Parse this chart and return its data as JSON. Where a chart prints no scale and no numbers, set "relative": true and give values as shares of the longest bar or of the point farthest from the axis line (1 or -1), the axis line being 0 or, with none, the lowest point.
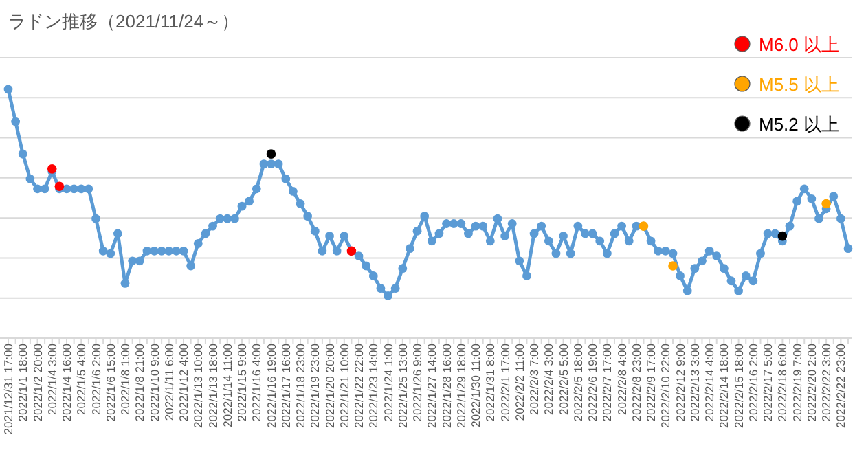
{
  "chart_data": {
    "type": "line",
    "title": "ラドン推移（2021/11/24～）",
    "relative": true,
    "grid": "y",
    "legend": "top right",
    "marker": "circle",
    "line_style": "solid",
    "categories": [
      "2021/12/31 17:00",
      null,
      "2022/1/1 18:00",
      null,
      "2022/1/2 20:00",
      null,
      "2022/1/4 3:00",
      null,
      "2022/1/4 16:00",
      null,
      "2022/1/5 4:00",
      null,
      "2022/1/6 2:00",
      null,
      "2022/1/6 15:00",
      null,
      "2022/1/8 1:00",
      null,
      "2022/1/8 21:00",
      null,
      "2022/1/10 9:00",
      null,
      "2022/1/11 6:00",
      null,
      "2022/1/12 4:00",
      null,
      "2022/1/13 10:00",
      null,
      "2022/1/13 18:00",
      null,
      "2022/1/14 11:00",
      null,
      "2022/1/15 9:00",
      null,
      "2022/1/16 4:00",
      null,
      "2022/1/16 19:00",
      null,
      "2022/1/17 16:00",
      null,
      "2022/1/18 23:00",
      null,
      "2022/1/19 23:00",
      null,
      "2022/1/20 20:00",
      null,
      "2022/1/21 10:00",
      null,
      "2022/1/22 22:00",
      null,
      "2022/1/23 14:00",
      null,
      "2022/1/24 1:00",
      null,
      "2022/1/25 13:00",
      null,
      "2022/1/26 9:00",
      null,
      "2022/1/27 14:00",
      null,
      "2022/1/28 16:00",
      null,
      "2022/1/29 18:00",
      null,
      "2022/1/30 11:00",
      null,
      "2022/1/31 8:00",
      null,
      "2022/2/1 17:00",
      null,
      "2022/2/2 11:00",
      null,
      "2022/2/3 7:00",
      null,
      "2022/2/4 3:00",
      null,
      "2022/2/5 5:00",
      null,
      "2022/2/5 18:00",
      null,
      "2022/2/6 19:00",
      null,
      "2022/2/7 17:00",
      null,
      "2022/2/8 4:00",
      null,
      "2022/2/8 23:00",
      null,
      "2022/2/9 17:00",
      null,
      "2022/2/10 22:00",
      null,
      "2022/2/12 9:00",
      null,
      "2022/2/13 3:00",
      null,
      "2022/2/14 4:00",
      null,
      "2022/2/14 18:00",
      null,
      "2022/2/15 18:00",
      null,
      "2022/2/16 2:00",
      null,
      "2022/2/17 5:00",
      null,
      "2022/2/18 6:00",
      null,
      "2022/2/19 7:00",
      null,
      "2022/2/20 2:00",
      null,
      "2022/2/22 3:00",
      null,
      "2022/2/22 23:00",
      null
    ],
    "series": [
      {
        "type": "line",
        "color": "#5b9bd5",
        "values": [
          1.0,
          0.87,
          0.74,
          0.64,
          0.6,
          0.6,
          0.67,
          0.6,
          0.6,
          0.6,
          0.6,
          0.6,
          0.48,
          0.35,
          0.34,
          0.42,
          0.22,
          0.31,
          0.31,
          0.35,
          0.35,
          0.35,
          0.35,
          0.35,
          0.35,
          0.29,
          0.38,
          0.42,
          0.45,
          0.48,
          0.48,
          0.48,
          0.53,
          0.55,
          0.6,
          0.7,
          0.7,
          0.7,
          0.64,
          0.59,
          0.54,
          0.49,
          0.43,
          0.35,
          0.41,
          0.35,
          0.41,
          0.35,
          0.33,
          0.29,
          0.25,
          0.2,
          0.17,
          0.2,
          0.28,
          0.36,
          0.43,
          0.49,
          0.39,
          0.42,
          0.46,
          0.46,
          0.46,
          0.42,
          0.45,
          0.45,
          0.39,
          0.48,
          0.41,
          0.46,
          0.31,
          0.25,
          0.42,
          0.45,
          0.39,
          0.34,
          0.41,
          0.34,
          0.45,
          0.42,
          0.42,
          0.39,
          0.34,
          0.42,
          0.45,
          0.39,
          0.45,
          0.45,
          0.39,
          0.35,
          0.35,
          0.34,
          0.25,
          0.19,
          0.28,
          0.31,
          0.35,
          0.33,
          0.28,
          0.23,
          0.19,
          0.25,
          0.23,
          0.34,
          0.42,
          0.42,
          0.39,
          0.45,
          0.55,
          0.6,
          0.56,
          0.48,
          0.52,
          0.57,
          0.48,
          0.36
        ]
      },
      {
        "type": "scatter",
        "name": "M6.0 以上",
        "color": "#ff0000",
        "values": [
          null,
          null,
          null,
          null,
          null,
          null,
          0.68,
          0.61,
          null,
          null,
          null,
          null,
          null,
          null,
          null,
          null,
          null,
          null,
          null,
          null,
          null,
          null,
          null,
          null,
          null,
          null,
          null,
          null,
          null,
          null,
          null,
          null,
          null,
          null,
          null,
          null,
          null,
          null,
          null,
          null,
          null,
          null,
          null,
          null,
          null,
          null,
          null,
          0.35,
          null,
          null,
          null,
          null,
          null,
          null,
          null,
          null,
          null,
          null,
          null,
          null,
          null,
          null,
          null,
          null,
          null,
          null,
          null,
          null,
          null,
          null,
          null,
          null,
          null,
          null,
          null,
          null,
          null,
          null,
          null,
          null,
          null,
          null,
          null,
          null,
          null,
          null,
          null,
          null,
          null,
          null,
          null,
          null,
          null,
          null,
          null,
          null,
          null,
          null,
          null,
          null,
          null,
          null,
          null,
          null,
          null,
          null,
          null,
          null,
          null,
          null,
          null,
          null,
          null,
          null,
          null,
          null
        ]
      },
      {
        "type": "scatter",
        "name": "M5.5 以上",
        "color": "#ffa500",
        "values": [
          null,
          null,
          null,
          null,
          null,
          null,
          null,
          null,
          null,
          null,
          null,
          null,
          null,
          null,
          null,
          null,
          null,
          null,
          null,
          null,
          null,
          null,
          null,
          null,
          null,
          null,
          null,
          null,
          null,
          null,
          null,
          null,
          null,
          null,
          null,
          null,
          null,
          null,
          null,
          null,
          null,
          null,
          null,
          null,
          null,
          null,
          null,
          null,
          null,
          null,
          null,
          null,
          null,
          null,
          null,
          null,
          null,
          null,
          null,
          null,
          null,
          null,
          null,
          null,
          null,
          null,
          null,
          null,
          null,
          null,
          null,
          null,
          null,
          null,
          null,
          null,
          null,
          null,
          null,
          null,
          null,
          null,
          null,
          null,
          null,
          null,
          null,
          0.45,
          null,
          null,
          null,
          0.29,
          null,
          null,
          null,
          null,
          null,
          null,
          null,
          null,
          null,
          null,
          null,
          null,
          null,
          null,
          null,
          null,
          null,
          null,
          null,
          null,
          0.54,
          null,
          null,
          null
        ]
      },
      {
        "type": "scatter",
        "name": "M5.2 以上",
        "color": "#000000",
        "values": [
          null,
          null,
          null,
          null,
          null,
          null,
          null,
          null,
          null,
          null,
          null,
          null,
          null,
          null,
          null,
          null,
          null,
          null,
          null,
          null,
          null,
          null,
          null,
          null,
          null,
          null,
          null,
          null,
          null,
          null,
          null,
          null,
          null,
          null,
          null,
          null,
          0.74,
          null,
          null,
          null,
          null,
          null,
          null,
          null,
          null,
          null,
          null,
          null,
          null,
          null,
          null,
          null,
          null,
          null,
          null,
          null,
          null,
          null,
          null,
          null,
          null,
          null,
          null,
          null,
          null,
          null,
          null,
          null,
          null,
          null,
          null,
          null,
          null,
          null,
          null,
          null,
          null,
          null,
          null,
          null,
          null,
          null,
          null,
          null,
          null,
          null,
          null,
          null,
          null,
          null,
          null,
          null,
          null,
          null,
          null,
          null,
          null,
          null,
          null,
          null,
          null,
          null,
          null,
          null,
          null,
          null,
          0.41,
          null,
          null,
          null,
          null,
          null,
          null,
          null,
          null,
          null
        ]
      }
    ]
  }
}
